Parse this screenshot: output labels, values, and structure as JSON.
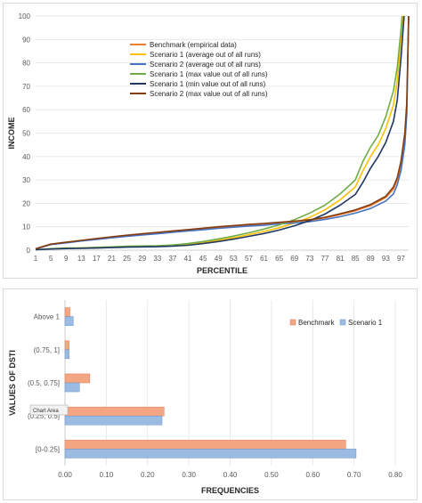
{
  "chart_data": [
    {
      "type": "line",
      "title": "",
      "xlabel": "PERCENTILE",
      "ylabel": "INCOME",
      "xlim": [
        1,
        99
      ],
      "ylim": [
        0,
        100
      ],
      "x_ticks": [
        "1",
        "5",
        "9",
        "13",
        "17",
        "21",
        "25",
        "29",
        "33",
        "37",
        "41",
        "45",
        "49",
        "53",
        "57",
        "61",
        "65",
        "69",
        "73",
        "77",
        "81",
        "85",
        "89",
        "93",
        "97"
      ],
      "y_ticks": [
        "0",
        "10",
        "20",
        "30",
        "40",
        "50",
        "60",
        "70",
        "80",
        "90",
        "100"
      ],
      "grid": "horizontal",
      "legend_position": "top-left",
      "series": [
        {
          "name": "Benchmark (empirical data)",
          "color": "#ed7d31",
          "points": [
            [
              1,
              0.5
            ],
            [
              5,
              2.5
            ],
            [
              9,
              3.2
            ],
            [
              13,
              4
            ],
            [
              17,
              4.8
            ],
            [
              21,
              5.5
            ],
            [
              25,
              6.2
            ],
            [
              29,
              6.8
            ],
            [
              33,
              7.4
            ],
            [
              37,
              8
            ],
            [
              41,
              8.6
            ],
            [
              45,
              9.2
            ],
            [
              49,
              9.8
            ],
            [
              53,
              10.3
            ],
            [
              57,
              10.8
            ],
            [
              61,
              11.2
            ],
            [
              65,
              11.7
            ],
            [
              69,
              12.2
            ],
            [
              73,
              12.8
            ],
            [
              77,
              13.8
            ],
            [
              81,
              15.2
            ],
            [
              85,
              16.8
            ],
            [
              89,
              19
            ],
            [
              93,
              22.5
            ],
            [
              95,
              26
            ],
            [
              96,
              30
            ],
            [
              97,
              36
            ],
            [
              98,
              48
            ],
            [
              98.5,
              60
            ],
            [
              99,
              100
            ]
          ]
        },
        {
          "name": "Scenario 1 (average out of all runs)",
          "color": "#ffc000",
          "points": [
            [
              1,
              0.2
            ],
            [
              5,
              0.6
            ],
            [
              9,
              0.8
            ],
            [
              13,
              0.9
            ],
            [
              17,
              1
            ],
            [
              21,
              1.2
            ],
            [
              25,
              1.5
            ],
            [
              29,
              1.6
            ],
            [
              33,
              1.7
            ],
            [
              37,
              1.9
            ],
            [
              41,
              2.4
            ],
            [
              45,
              3.2
            ],
            [
              49,
              4.2
            ],
            [
              53,
              5.3
            ],
            [
              57,
              6.6
            ],
            [
              61,
              8
            ],
            [
              65,
              9.6
            ],
            [
              69,
              11.6
            ],
            [
              73,
              14
            ],
            [
              77,
              17.2
            ],
            [
              81,
              21.5
            ],
            [
              85,
              27
            ],
            [
              87,
              34
            ],
            [
              89,
              40
            ],
            [
              91,
              45
            ],
            [
              93,
              52
            ],
            [
              95,
              62
            ],
            [
              96,
              72
            ],
            [
              97,
              90
            ],
            [
              97.5,
              100
            ]
          ]
        },
        {
          "name": "Scenario 2  (average out of all runs)",
          "color": "#4472c4",
          "points": [
            [
              1,
              0.5
            ],
            [
              5,
              2.4
            ],
            [
              9,
              3.1
            ],
            [
              13,
              3.9
            ],
            [
              17,
              4.6
            ],
            [
              21,
              5.3
            ],
            [
              25,
              5.9
            ],
            [
              29,
              6.5
            ],
            [
              33,
              7
            ],
            [
              37,
              7.6
            ],
            [
              41,
              8.2
            ],
            [
              45,
              8.7
            ],
            [
              49,
              9.3
            ],
            [
              53,
              9.8
            ],
            [
              57,
              10.3
            ],
            [
              61,
              10.7
            ],
            [
              65,
              11.2
            ],
            [
              69,
              11.6
            ],
            [
              73,
              12.2
            ],
            [
              77,
              13.1
            ],
            [
              81,
              14.3
            ],
            [
              85,
              15.8
            ],
            [
              89,
              17.8
            ],
            [
              93,
              21
            ],
            [
              95,
              24
            ],
            [
              96,
              28
            ],
            [
              97,
              34
            ],
            [
              98,
              45
            ],
            [
              98.5,
              58
            ],
            [
              99,
              100
            ]
          ]
        },
        {
          "name": "Scenario 1 (max value out of all runs)",
          "color": "#70ad47",
          "points": [
            [
              1,
              0.2
            ],
            [
              5,
              0.6
            ],
            [
              9,
              0.9
            ],
            [
              13,
              1
            ],
            [
              17,
              1.2
            ],
            [
              21,
              1.4
            ],
            [
              25,
              1.7
            ],
            [
              29,
              1.8
            ],
            [
              33,
              1.9
            ],
            [
              37,
              2.2
            ],
            [
              41,
              2.8
            ],
            [
              45,
              3.7
            ],
            [
              49,
              4.8
            ],
            [
              53,
              6
            ],
            [
              57,
              7.4
            ],
            [
              61,
              9
            ],
            [
              65,
              10.8
            ],
            [
              69,
              13
            ],
            [
              73,
              15.8
            ],
            [
              77,
              19.2
            ],
            [
              81,
              24
            ],
            [
              85,
              30
            ],
            [
              87,
              38
            ],
            [
              89,
              44
            ],
            [
              91,
              49
            ],
            [
              93,
              57
            ],
            [
              95,
              68
            ],
            [
              96,
              78
            ],
            [
              97,
              94
            ],
            [
              97.3,
              100
            ]
          ]
        },
        {
          "name": "Scenario 1 (min value out of all runs)",
          "color": "#203864",
          "points": [
            [
              1,
              0.2
            ],
            [
              5,
              0.5
            ],
            [
              9,
              0.7
            ],
            [
              13,
              0.8
            ],
            [
              17,
              0.9
            ],
            [
              21,
              1.1
            ],
            [
              25,
              1.3
            ],
            [
              29,
              1.4
            ],
            [
              33,
              1.5
            ],
            [
              37,
              1.7
            ],
            [
              41,
              2.1
            ],
            [
              45,
              2.8
            ],
            [
              49,
              3.7
            ],
            [
              53,
              4.7
            ],
            [
              57,
              5.9
            ],
            [
              61,
              7.1
            ],
            [
              65,
              8.6
            ],
            [
              69,
              10.4
            ],
            [
              73,
              12.6
            ],
            [
              77,
              15.4
            ],
            [
              81,
              19.2
            ],
            [
              85,
              23.8
            ],
            [
              87,
              29
            ],
            [
              89,
              35
            ],
            [
              91,
              40
            ],
            [
              93,
              46
            ],
            [
              95,
              55
            ],
            [
              96,
              64
            ],
            [
              97,
              82
            ],
            [
              97.8,
              100
            ]
          ]
        },
        {
          "name": "Scenario 2 (max value out of all runs)",
          "color": "#843c0c",
          "points": [
            [
              1,
              0.6
            ],
            [
              5,
              2.6
            ],
            [
              9,
              3.4
            ],
            [
              13,
              4.2
            ],
            [
              17,
              5
            ],
            [
              21,
              5.7
            ],
            [
              25,
              6.4
            ],
            [
              29,
              7
            ],
            [
              33,
              7.6
            ],
            [
              37,
              8.2
            ],
            [
              41,
              8.8
            ],
            [
              45,
              9.4
            ],
            [
              49,
              10
            ],
            [
              53,
              10.5
            ],
            [
              57,
              11
            ],
            [
              61,
              11.4
            ],
            [
              65,
              11.9
            ],
            [
              69,
              12.4
            ],
            [
              73,
              13
            ],
            [
              77,
              14
            ],
            [
              81,
              15.5
            ],
            [
              85,
              17.2
            ],
            [
              89,
              19.5
            ],
            [
              93,
              23
            ],
            [
              95,
              27
            ],
            [
              96,
              31
            ],
            [
              97,
              38
            ],
            [
              98,
              50
            ],
            [
              98.5,
              63
            ],
            [
              99,
              100
            ]
          ]
        }
      ]
    },
    {
      "type": "bar",
      "orientation": "horizontal",
      "title": "",
      "xlabel": "FREQUENCIES",
      "ylabel": "VALUES OF DSTI",
      "xlim": [
        0,
        0.8
      ],
      "x_ticks": [
        "0.00",
        "0.10",
        "0.20",
        "0.30",
        "0.40",
        "0.50",
        "0.60",
        "0.70",
        "0.80"
      ],
      "grid": "vertical",
      "legend_position": "top-right",
      "categories": [
        "[0-0.25]",
        "(0.25, 0.5]",
        "(0.5, 0.75]",
        "(0.75, 1]",
        "Above 1"
      ],
      "series": [
        {
          "name": "Benchmark",
          "color": "#f4a582",
          "values": [
            0.68,
            0.24,
            0.06,
            0.01,
            0.012
          ]
        },
        {
          "name": "Scenario 1",
          "color": "#9cbbe2",
          "values": [
            0.705,
            0.235,
            0.035,
            0.01,
            0.02
          ]
        }
      ],
      "tooltip": "Chart Area"
    }
  ]
}
